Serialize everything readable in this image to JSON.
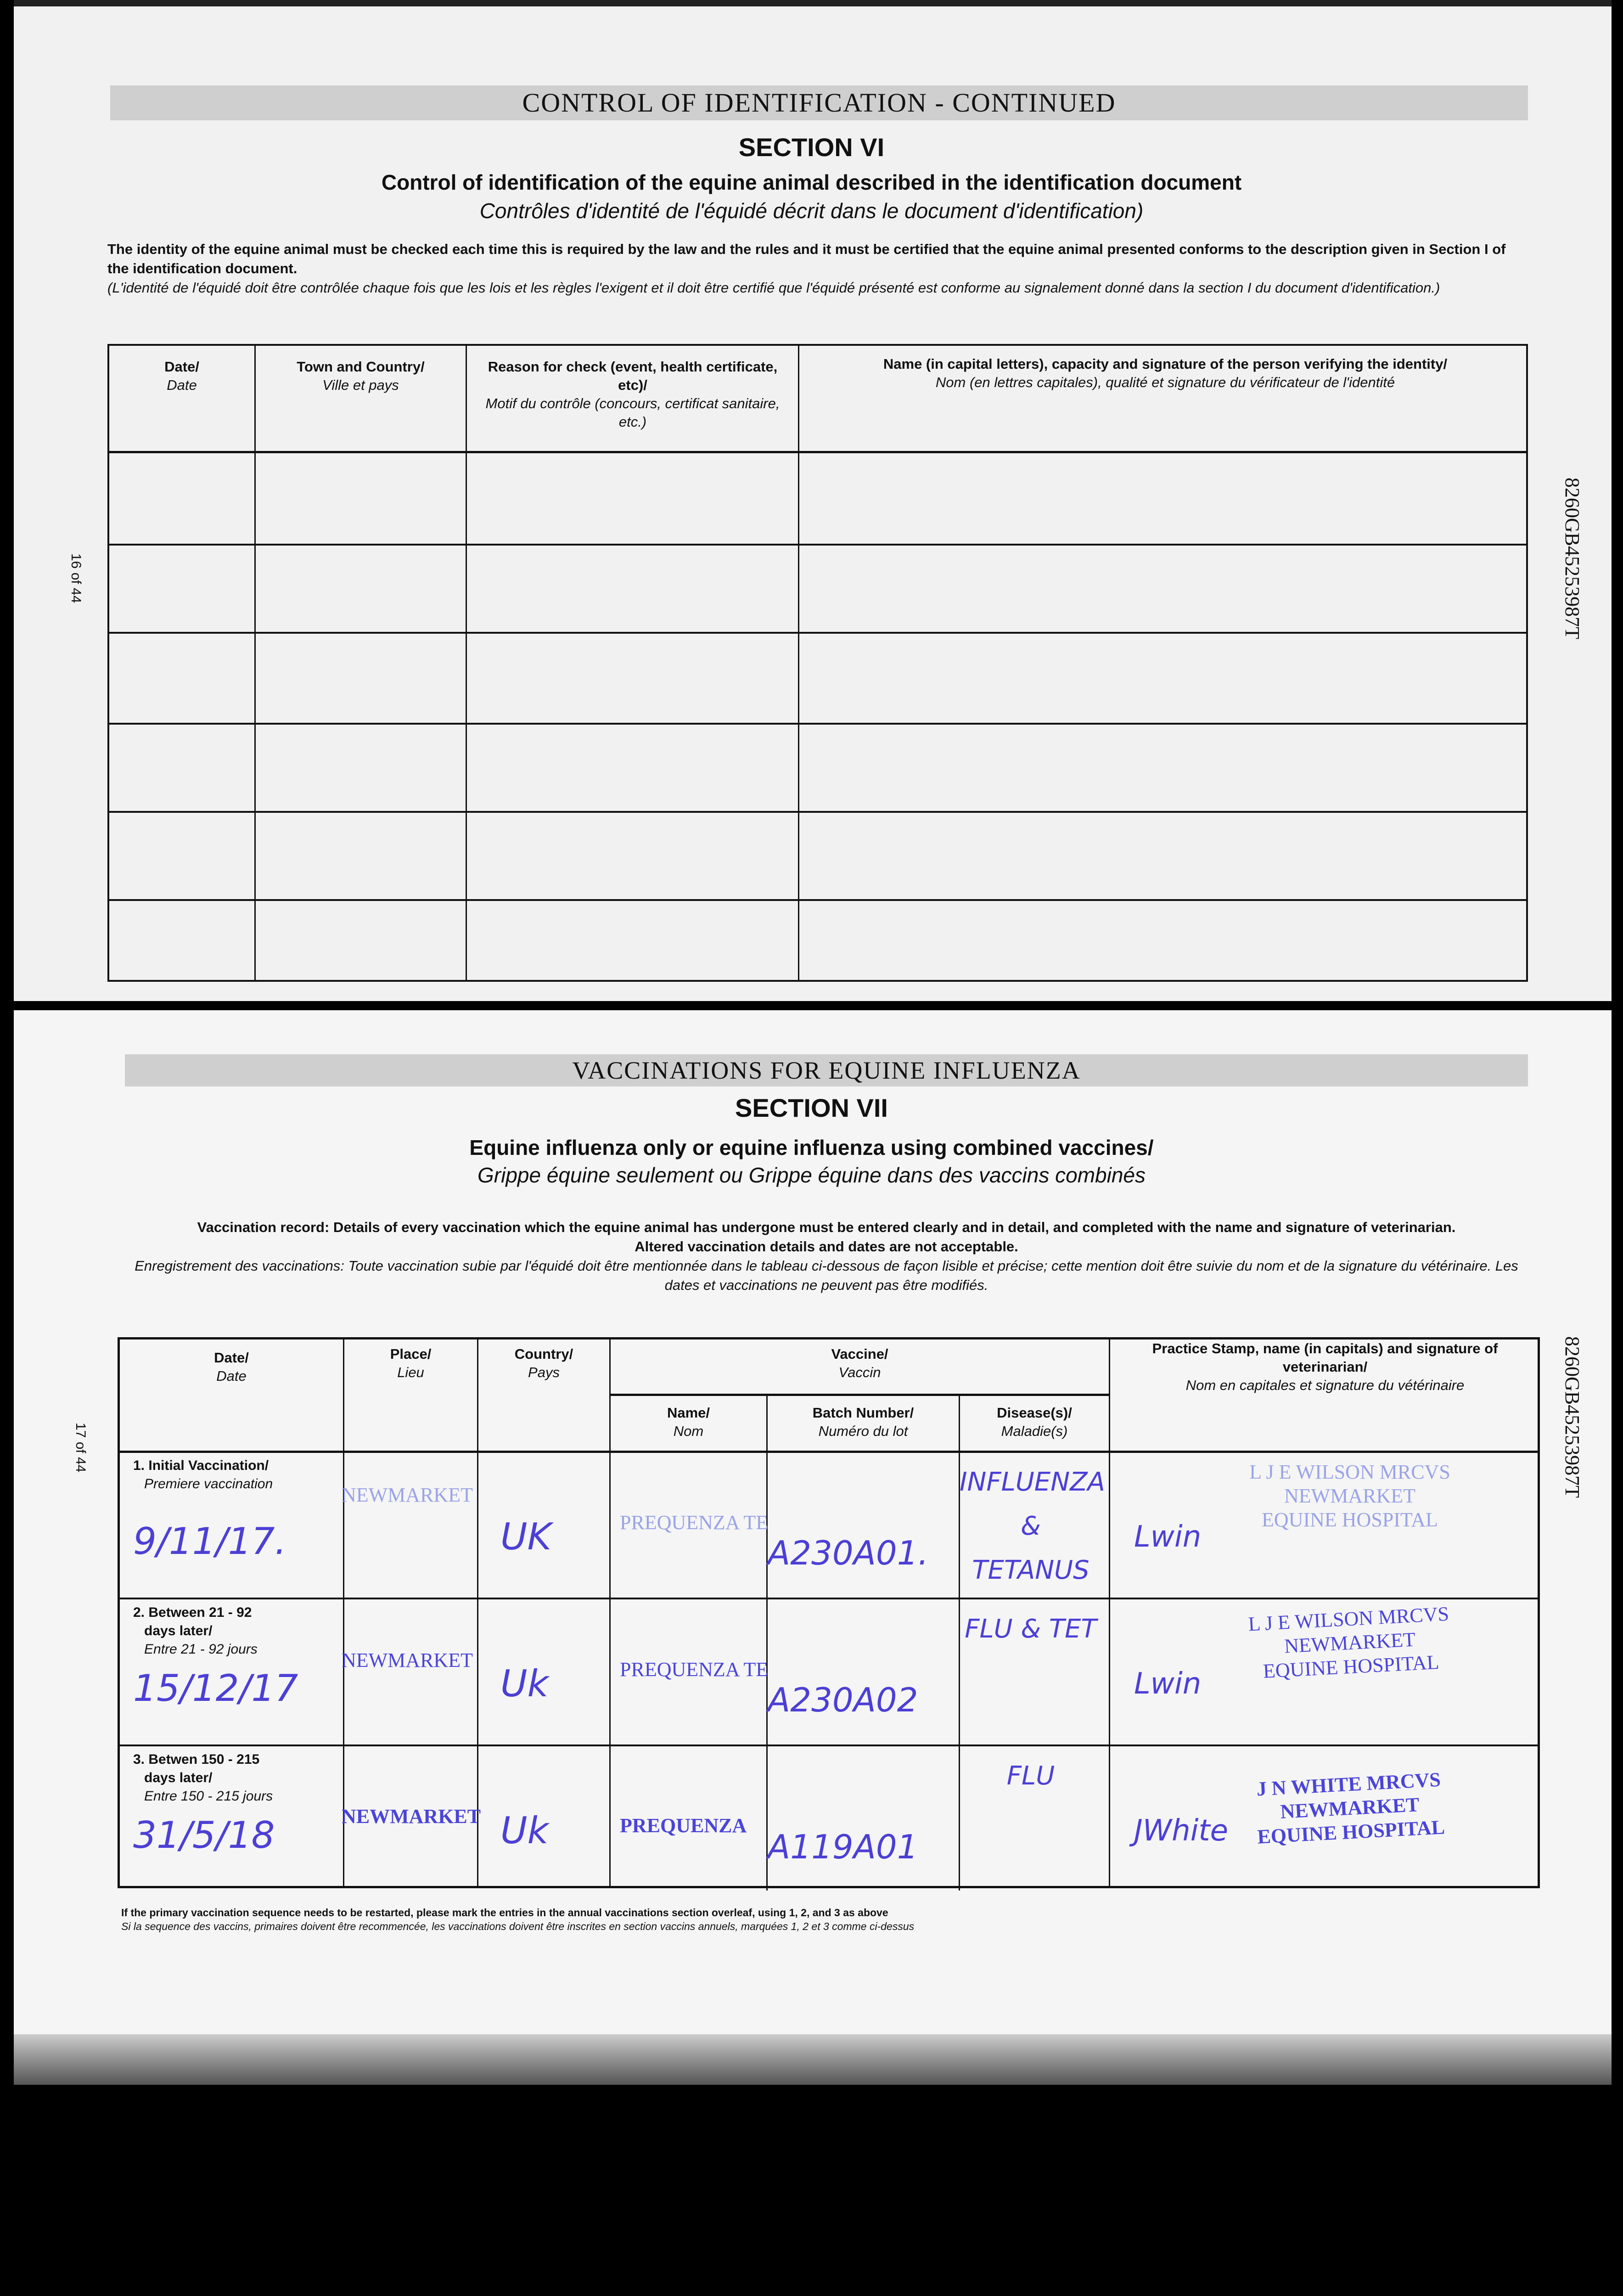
{
  "page16": {
    "banner": "CONTROL OF IDENTIFICATION - CONTINUED",
    "section": "SECTION VI",
    "title": "Control of identification of the equine animal described in the identification document",
    "title_fr": "Contrôles d'identité de l'équidé décrit dans le document d'identification)",
    "para_en": "The identity of the equine animal must be checked each time this is required by the law and the rules and it must be certified that the equine animal presented conforms to the description given in Section I of the identification document.",
    "para_fr": "(L'identité de l'équidé doit être contrôlée chaque fois que les lois et les règles l'exigent et il doit être certifié que l'équidé présenté est conforme au signalement donné dans la section I du document d'identification.)",
    "page_number": "16 of 44",
    "passport_number": "8260GB45253987T",
    "columns": [
      {
        "en": "Date/",
        "fr": "Date"
      },
      {
        "en": "Town and Country/",
        "fr": "Ville et pays"
      },
      {
        "en": "Reason for check (event, health certificate, etc)/",
        "fr": "Motif du contrôle (concours, certificat sanitaire, etc.)"
      },
      {
        "en": "Name (in capital letters), capacity and signature of the person verifying the identity/",
        "fr": "Nom (en lettres capitales), qualité et signature du vérificateur de l'identité"
      }
    ]
  },
  "page17": {
    "banner": "VACCINATIONS FOR EQUINE INFLUENZA",
    "section": "SECTION VII",
    "title": "Equine influenza only or equine influenza using combined vaccines/",
    "title_fr": "Grippe équine seulement ou Grippe équine dans des vaccins combinés",
    "para_en1": "Vaccination record: Details of every vaccination which the equine animal has undergone must be entered clearly and in detail, and completed with the name and signature of veterinarian.",
    "para_en2": "Altered vaccination details and dates are not acceptable.",
    "para_fr": "Enregistrement des vaccinations: Toute vaccination subie par l'équidé doit être mentionnée dans le tableau ci-dessous de façon lisible et précise; cette mention doit être suivie du nom et de la signature du vétérinaire. Les dates et vaccinations ne peuvent pas être modifiés.",
    "page_number": "17 of 44",
    "passport_number": "8260GB45253987T",
    "headers": {
      "date": {
        "en": "Date/",
        "fr": "Date"
      },
      "place": {
        "en": "Place/",
        "fr": "Lieu"
      },
      "country": {
        "en": "Country/",
        "fr": "Pays"
      },
      "vaccine": {
        "en": "Vaccine/",
        "fr": "Vaccin"
      },
      "name": {
        "en": "Name/",
        "fr": "Nom"
      },
      "batch": {
        "en": "Batch Number/",
        "fr": "Numéro du lot"
      },
      "disease": {
        "en": "Disease(s)/",
        "fr": "Maladie(s)"
      },
      "stamp": {
        "en": "Practice Stamp, name (in capitals) and signature of veterinarian/",
        "fr": "Nom en capitales et signature du vétérinaire"
      }
    },
    "rows": [
      {
        "label_en": "1. Initial Vaccination/",
        "label_fr": "Premiere vaccination",
        "label_en2": "",
        "date": "9/11/17.",
        "place": "NEWMARKET",
        "country": "UK",
        "name": "PREQUENZA TE",
        "batch": "A230A01.",
        "disease": "INFLUENZA & TETANUS",
        "stamp": [
          "L J E WILSON MRCVS",
          "NEWMARKET",
          "EQUINE HOSPITAL"
        ],
        "signature": "Lwin"
      },
      {
        "label_en": "2. Between 21 - 92",
        "label_en2": "days later/",
        "label_fr": "Entre 21 - 92 jours",
        "date": "15/12/17",
        "place": "NEWMARKET",
        "country": "Uk",
        "name": "PREQUENZA TE",
        "batch": "A230A02",
        "disease": "FLU & TET",
        "stamp": [
          "L J E WILSON MRCVS",
          "NEWMARKET",
          "EQUINE HOSPITAL"
        ],
        "signature": "Lwin"
      },
      {
        "label_en": "3. Betwen 150 - 215",
        "label_en2": "days later/",
        "label_fr": "Entre 150 - 215 jours",
        "date": "31/5/18",
        "place": "NEWMARKET",
        "country": "Uk",
        "name": "PREQUENZA",
        "batch": "A119A01",
        "disease": "FLU",
        "stamp": [
          "J N WHITE MRCVS",
          "NEWMARKET",
          "EQUINE HOSPITAL"
        ],
        "signature": "JWhite"
      }
    ],
    "foot_en": "If the primary vaccination sequence needs to be restarted, please mark the entries in the annual vaccinations section overleaf, using 1, 2, and 3 as above",
    "foot_fr": "Si la sequence des vaccins, primaires doivent être recommencée, les vaccinations doivent être inscrites en section vaccins annuels, marquées 1, 2 et 3 comme ci-dessus"
  },
  "colors": {
    "ink": "#4b3fd6",
    "stamp": "#4a45d8",
    "banner": "#cfcfcf"
  }
}
